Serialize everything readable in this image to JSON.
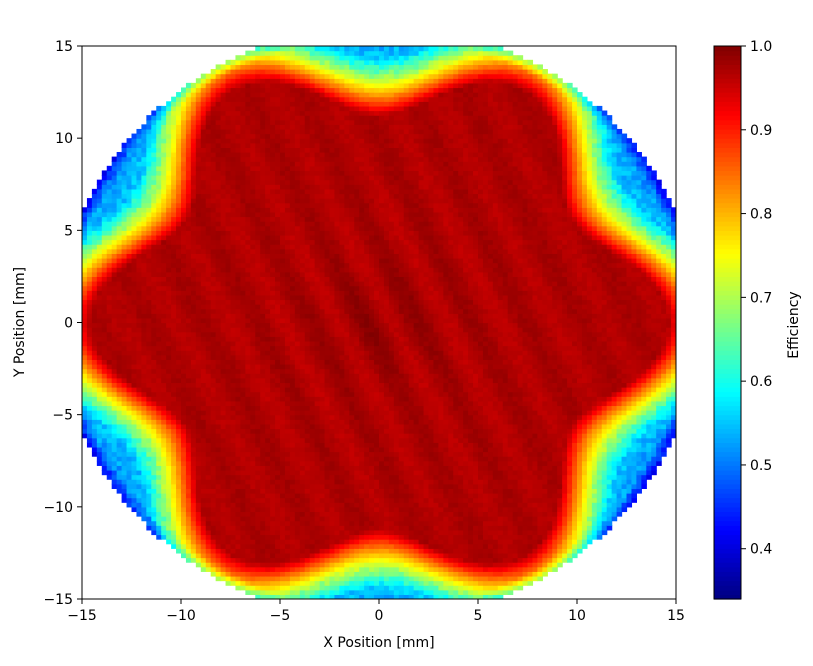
{
  "chart_data": {
    "type": "heatmap",
    "title": "",
    "xlabel": "X Position [mm]",
    "ylabel": "Y Position [mm]",
    "xlim": [
      -15,
      15
    ],
    "ylim": [
      -15,
      15
    ],
    "x_ticks": [
      -15,
      -10,
      -5,
      0,
      5,
      10,
      15
    ],
    "x_tick_labels": [
      "−15",
      "−10",
      "−5",
      "0",
      "5",
      "10",
      "15"
    ],
    "y_ticks": [
      -15,
      -10,
      -5,
      0,
      5,
      10,
      15
    ],
    "y_tick_labels": [
      "−15",
      "−10",
      "−5",
      "0",
      "5",
      "10",
      "15"
    ],
    "grid": false,
    "colormap": "jet",
    "colorbar": {
      "label": "Efficiency",
      "range": [
        0.34,
        1.0
      ],
      "ticks": [
        0.4,
        0.5,
        0.6,
        0.7,
        0.8,
        0.9,
        1.0
      ],
      "tick_labels": [
        "0.4",
        "0.5",
        "0.6",
        "0.7",
        "0.8",
        "0.9",
        "1.0"
      ]
    },
    "bin_size_mm": 0.25,
    "data_region": "disk, radius ≈ 16 mm, clipped to the ±15 mm square",
    "pattern": {
      "description": "six-lobed high-efficiency region; efficiency falls off toward the outer edge and between lobes",
      "center_value": 0.98,
      "plateau_value": 0.97,
      "edge_value": 0.55,
      "corner_value": 0.45,
      "lobes": 6,
      "lobe_angles_deg": [
        0,
        60,
        120,
        180,
        240,
        300
      ],
      "lobe_tip_radius_mm": 14.6,
      "valley_radius_mm": 11.2
    }
  }
}
